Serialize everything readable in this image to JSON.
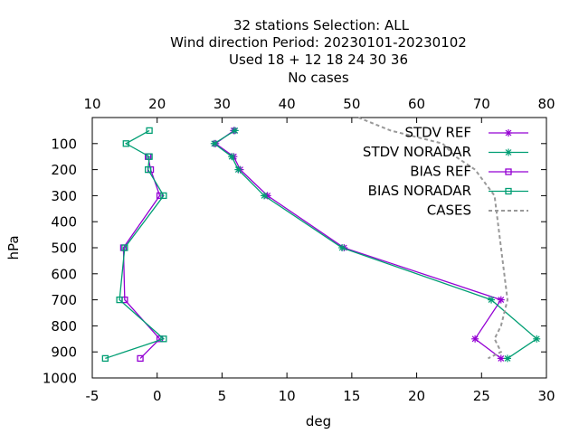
{
  "chart_data": {
    "type": "line",
    "title_lines": [
      "32 stations Selection: ALL",
      "Wind direction  Period: 20230101-20230102",
      "Used  18 + 12 18 24 30 36",
      "No cases"
    ],
    "xlabel": "deg",
    "ylabel": "hPa",
    "xlim": [
      -5,
      30
    ],
    "x_ticks": [
      "-5",
      "0",
      "5",
      "10",
      "15",
      "20",
      "25",
      "30"
    ],
    "x2lim": [
      10,
      80
    ],
    "x2_ticks": [
      "10",
      "20",
      "30",
      "40",
      "50",
      "60",
      "70",
      "80"
    ],
    "ylim": [
      1000,
      0
    ],
    "y_ticks": [
      "100",
      "200",
      "300",
      "400",
      "500",
      "600",
      "700",
      "800",
      "900",
      "1000"
    ],
    "legend_position": "top-right",
    "grid": false,
    "series": [
      {
        "name": "STDV REF",
        "color": "#9400d3",
        "marker": "star",
        "x": [
          31.8,
          29.0,
          31.8,
          32.8,
          37.0,
          48.8,
          73.0,
          69.0,
          73.0
        ],
        "y": [
          50,
          100,
          150,
          200,
          300,
          500,
          700,
          850,
          925
        ]
      },
      {
        "name": "STDV NORADAR",
        "color": "#009e73",
        "marker": "star",
        "x": [
          32.0,
          28.8,
          31.5,
          32.5,
          36.5,
          48.5,
          71.5,
          78.5,
          74.0
        ],
        "y": [
          50,
          100,
          150,
          200,
          300,
          500,
          700,
          850,
          925
        ]
      },
      {
        "name": "BIAS REF",
        "color": "#9400d3",
        "marker": "square",
        "x": [
          -0.7,
          -0.5,
          0.2,
          -2.6,
          -2.5,
          0.2,
          -1.3
        ],
        "y": [
          150,
          200,
          300,
          500,
          700,
          850,
          925
        ]
      },
      {
        "name": "BIAS NORADAR",
        "color": "#009e73",
        "marker": "square",
        "x": [
          -0.6,
          -2.4,
          -0.6,
          -0.7,
          0.5,
          -2.5,
          -2.9,
          0.5,
          -4.0
        ],
        "y": [
          50,
          100,
          150,
          200,
          300,
          500,
          700,
          850,
          925
        ]
      },
      {
        "name": "CASES",
        "color": "#999999",
        "marker": "none",
        "dash": "dashed",
        "x": [
          51,
          56,
          64,
          66,
          69,
          72,
          73,
          74,
          73,
          72,
          73,
          71
        ],
        "y": [
          0,
          50,
          100,
          150,
          200,
          300,
          500,
          700,
          800,
          850,
          900,
          925
        ]
      }
    ]
  }
}
